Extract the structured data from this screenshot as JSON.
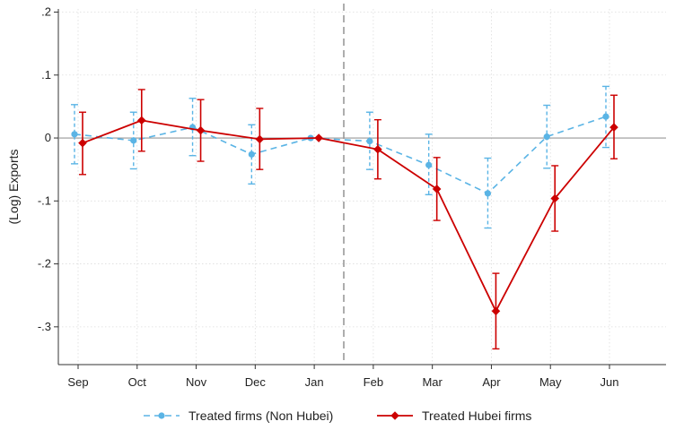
{
  "chart_data": {
    "type": "line",
    "title": "",
    "xlabel": "",
    "ylabel": "(Log) Exports",
    "categories": [
      "Sep",
      "Oct",
      "Nov",
      "Dec",
      "Jan",
      "Feb",
      "Mar",
      "Apr",
      "May",
      "Jun"
    ],
    "ylim": [
      -0.36,
      0.205
    ],
    "yticks": [
      0.2,
      0.1,
      0,
      -0.1,
      -0.2,
      -0.3
    ],
    "ytick_labels": [
      ".2",
      ".1",
      "0",
      "-.1",
      "-.2",
      "-.3"
    ],
    "grid": true,
    "reference_lines": {
      "horizontal_at": 0,
      "vertical_between": [
        "Jan",
        "Feb"
      ]
    },
    "legend_position": "bottom",
    "series": [
      {
        "name": "Treated firms (Non Hubei)",
        "color": "#5ab4e5",
        "line_style": "dashed",
        "marker": "circle",
        "values": [
          0.006,
          -0.004,
          0.017,
          -0.026,
          0.0,
          -0.005,
          -0.043,
          -0.088,
          0.002,
          0.034
        ],
        "ci_low": [
          -0.041,
          -0.049,
          -0.028,
          -0.073,
          0.0,
          -0.05,
          -0.09,
          -0.143,
          -0.048,
          -0.015
        ],
        "ci_high": [
          0.053,
          0.041,
          0.063,
          0.021,
          0.0,
          0.041,
          0.006,
          -0.032,
          0.052,
          0.082
        ]
      },
      {
        "name": "Treated Hubei firms",
        "color": "#cc0000",
        "line_style": "solid",
        "marker": "diamond",
        "values": [
          -0.008,
          0.028,
          0.012,
          -0.002,
          0.0,
          -0.018,
          -0.081,
          -0.275,
          -0.096,
          0.017
        ],
        "ci_low": [
          -0.058,
          -0.021,
          -0.037,
          -0.05,
          0.0,
          -0.065,
          -0.131,
          -0.335,
          -0.148,
          -0.033
        ],
        "ci_high": [
          0.041,
          0.077,
          0.061,
          0.047,
          0.0,
          0.029,
          -0.031,
          -0.215,
          -0.044,
          0.068
        ]
      }
    ]
  }
}
